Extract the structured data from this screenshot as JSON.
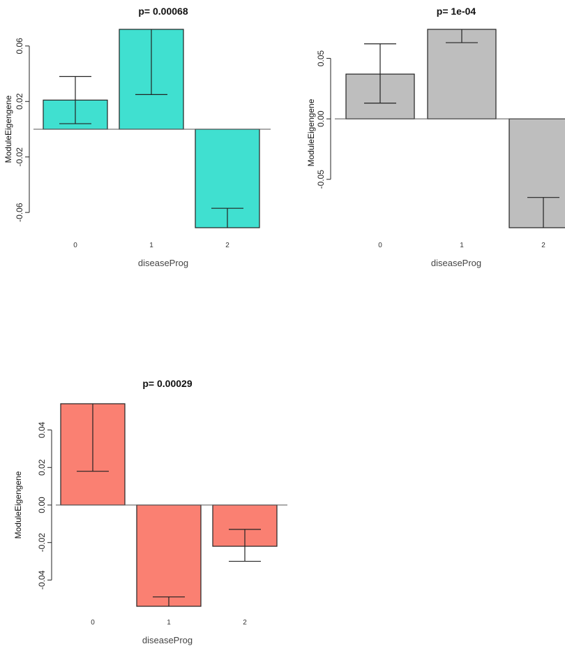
{
  "chart_data": [
    {
      "type": "bar",
      "title": "p= 0.00068",
      "xlabel": "diseaseProg",
      "ylabel": "ModuleEigengene",
      "categories": [
        "0",
        "1",
        "2"
      ],
      "values": [
        0.021,
        0.072,
        -0.071
      ],
      "error_low": [
        0.004,
        0.025,
        -0.071
      ],
      "error_high": [
        0.038,
        0.072,
        -0.057
      ],
      "ylim": [
        -0.071,
        0.072
      ],
      "yticks": [
        -0.06,
        -0.02,
        0.02,
        0.06
      ],
      "ytick_labels": [
        "-0.06",
        "-0.02",
        "0.02",
        "0.06"
      ],
      "bar_color": "#40e0d0"
    },
    {
      "type": "bar",
      "title": "p= 1e-04",
      "xlabel": "diseaseProg",
      "ylabel": "ModuleEigengene",
      "categories": [
        "0",
        "1",
        "2"
      ],
      "values": [
        0.037,
        0.074,
        -0.09
      ],
      "error_low": [
        0.013,
        0.063,
        -0.09
      ],
      "error_high": [
        0.062,
        0.074,
        -0.065
      ],
      "ylim": [
        -0.09,
        0.074
      ],
      "yticks": [
        -0.05,
        0.0,
        0.05
      ],
      "ytick_labels": [
        "-0.05",
        "0.00",
        "0.05"
      ],
      "bar_color": "#bebebe"
    },
    {
      "type": "bar",
      "title": "p= 0.00029",
      "xlabel": "diseaseProg",
      "ylabel": "ModuleEigengene",
      "categories": [
        "0",
        "1",
        "2"
      ],
      "values": [
        0.054,
        -0.054,
        -0.022
      ],
      "error_low": [
        0.018,
        -0.054,
        -0.03
      ],
      "error_high": [
        0.054,
        -0.049,
        -0.013
      ],
      "ylim": [
        -0.054,
        0.054
      ],
      "yticks": [
        -0.04,
        -0.02,
        0.0,
        0.02,
        0.04
      ],
      "ytick_labels": [
        "-0.04",
        "-0.02",
        "0.00",
        "0.02",
        "0.04"
      ],
      "bar_color": "#fa8072"
    }
  ]
}
